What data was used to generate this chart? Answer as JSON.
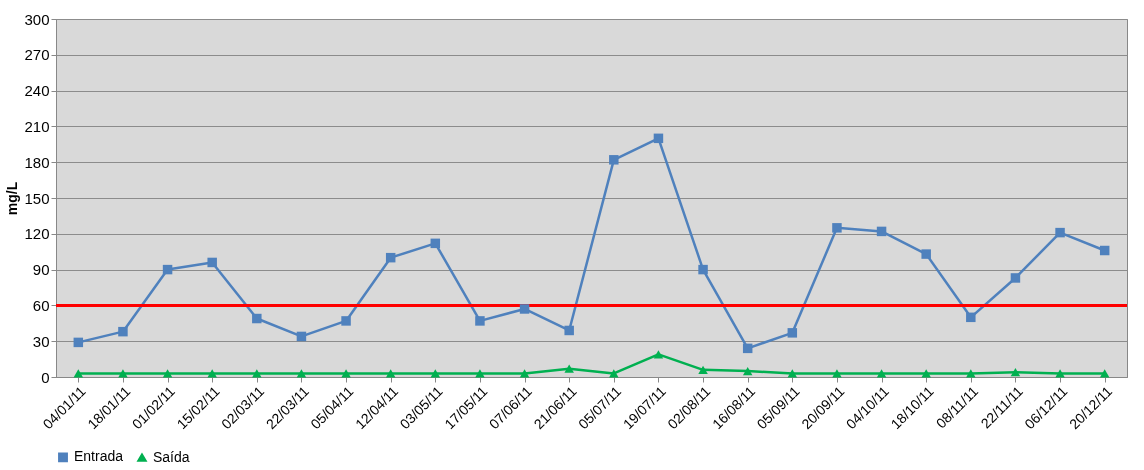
{
  "chart_data": {
    "type": "line",
    "ylabel": "mg/L",
    "categories": [
      "04/01/11",
      "18/01/11",
      "01/02/11",
      "15/02/11",
      "02/03/11",
      "22/03/11",
      "05/04/11",
      "12/04/11",
      "03/05/11",
      "17/05/11",
      "07/06/11",
      "21/06/11",
      "05/07/11",
      "19/07/11",
      "02/08/11",
      "16/08/11",
      "05/09/11",
      "20/09/11",
      "04/10/11",
      "18/10/11",
      "08/11/11",
      "22/11/11",
      "06/12/11",
      "20/12/11"
    ],
    "series": [
      {
        "name": "Entrada",
        "color": "#4f81bd",
        "marker": "square",
        "values": [
          29,
          38,
          90,
          96,
          49,
          34,
          47,
          100,
          112,
          47,
          57,
          39,
          182,
          200,
          90,
          24,
          37,
          125,
          122,
          103,
          50,
          83,
          121,
          106
        ]
      },
      {
        "name": "Saída",
        "color": "#00b050",
        "marker": "triangle",
        "values": [
          3,
          3,
          3,
          3,
          3,
          3,
          3,
          3,
          3,
          3,
          3,
          7,
          3,
          19,
          6,
          5,
          3,
          3,
          3,
          3,
          3,
          4,
          3,
          3
        ]
      }
    ],
    "ylim": [
      0,
      300
    ],
    "yticks": [
      0,
      30,
      60,
      90,
      120,
      150,
      180,
      210,
      240,
      270,
      300
    ],
    "ref_lines": [
      {
        "axis": "y",
        "value": 60,
        "color": "#ff0000"
      }
    ],
    "grid": "y",
    "legend": "bottom",
    "line_style": "solid"
  }
}
